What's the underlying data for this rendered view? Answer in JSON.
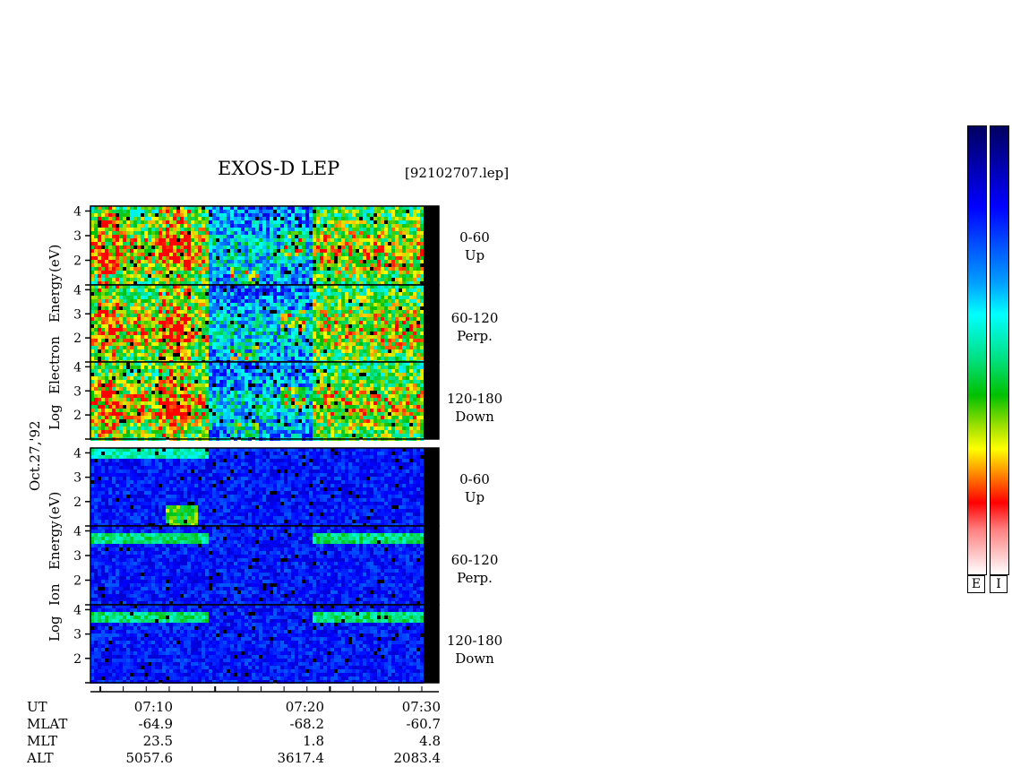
{
  "header": {
    "title": "EXOS-D LEP",
    "file": "[92102707.lep]"
  },
  "chart_data": {
    "type": "heatmap",
    "title": "EXOS-D LEP",
    "date": "Oct.27,'92",
    "groups": [
      {
        "species": "Electron",
        "ylabel_parts": [
          "Log",
          "Electron",
          "Energy",
          "(eV)"
        ],
        "panels": [
          {
            "pitch": "0-60",
            "dir": "Up",
            "yticks": [
              "4",
              "3",
              "2"
            ]
          },
          {
            "pitch": "60-120",
            "dir": "Perp.",
            "yticks": [
              "4",
              "3",
              "2"
            ]
          },
          {
            "pitch": "120-180",
            "dir": "Down",
            "yticks": [
              "4",
              "3",
              "2"
            ]
          }
        ]
      },
      {
        "species": "Ion",
        "ylabel_parts": [
          "Log",
          "Ion",
          "Energy",
          "(eV)"
        ],
        "panels": [
          {
            "pitch": "0-60",
            "dir": "Up",
            "yticks": [
              "4",
              "3",
              "2"
            ]
          },
          {
            "pitch": "60-120",
            "dir": "Perp.",
            "yticks": [
              "4",
              "3",
              "2"
            ]
          },
          {
            "pitch": "120-180",
            "dir": "Down",
            "yticks": [
              "4",
              "3",
              "2"
            ]
          }
        ]
      }
    ],
    "ylim": [
      1,
      4.2
    ],
    "xaxis": {
      "labels": [
        "UT",
        "MLAT",
        "MLT",
        "ALT"
      ],
      "ticks": [
        {
          "UT": "07:10",
          "MLAT": "-64.9",
          "MLT": "23.5",
          "ALT": "5057.6"
        },
        {
          "UT": "07:20",
          "MLAT": "-68.2",
          "MLT": "1.8",
          "ALT": "3617.4"
        },
        {
          "UT": "07:30",
          "MLAT": "-60.7",
          "MLT": "4.8",
          "ALT": "2083.4"
        }
      ]
    },
    "colorbars": [
      {
        "label": "E"
      },
      {
        "label": "I"
      }
    ]
  },
  "colors": {
    "low": "#ffffff",
    "mid": "#00c000",
    "high": "#ff0000",
    "bg": "#000080"
  }
}
